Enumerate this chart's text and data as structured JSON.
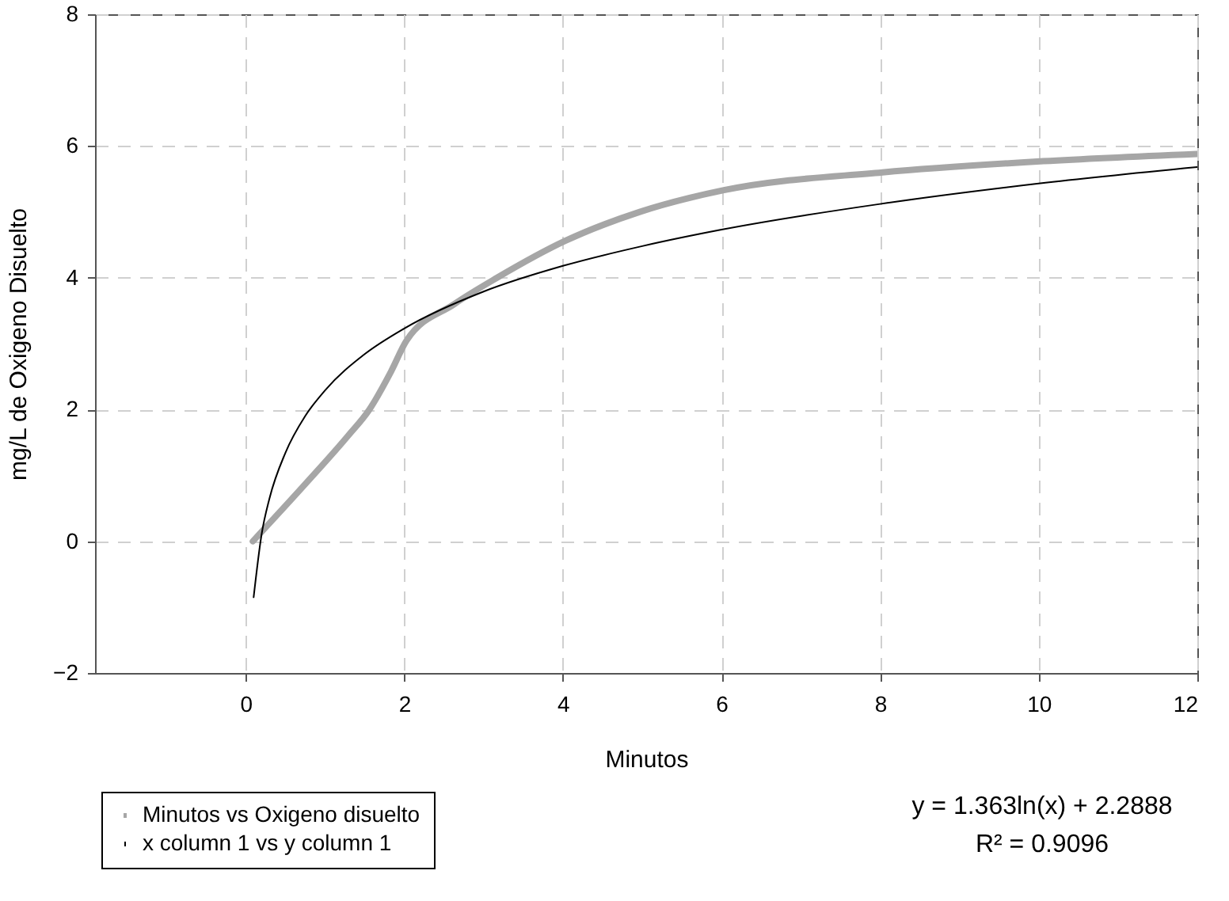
{
  "chart_data": {
    "type": "line",
    "xlabel": "Minutos",
    "ylabel": "mg/L de Oxigeno Disuelto",
    "xlim": [
      -1.9,
      12
    ],
    "ylim": [
      -2,
      8
    ],
    "xticks": [
      0,
      2,
      4,
      6,
      8,
      10,
      12
    ],
    "yticks": [
      -2,
      0,
      2,
      4,
      6,
      8
    ],
    "grid": true,
    "legend": "bottom left",
    "marker": "none",
    "line_style": "solid",
    "annotations": [
      "y = 1.363ln(x) + 2.2888",
      "R² = 0.9096"
    ],
    "series": [
      {
        "name": "Minutos vs Oxigeno disuelto",
        "color": "#a6a6a6",
        "x": [
          0.09,
          0.76,
          1.29,
          1.56,
          1.83,
          2.03,
          2.63,
          3.17,
          4.03,
          4.97,
          6.03,
          8.03,
          10.06,
          12
        ],
        "values": [
          0,
          0.88,
          1.6,
          2.0,
          2.57,
          3.05,
          3.6,
          4.0,
          4.56,
          5.0,
          5.33,
          5.6,
          5.77,
          5.88
        ]
      },
      {
        "name": "x column 1 vs y column 1",
        "color": "#000000",
        "x": [
          0.1,
          0.2,
          0.3,
          0.5,
          0.75,
          1,
          1.5,
          2,
          3,
          4,
          5,
          6,
          8,
          10,
          12
        ],
        "values": [
          -0.85,
          0.1,
          0.65,
          1.34,
          1.9,
          2.29,
          2.84,
          3.23,
          3.79,
          4.18,
          4.48,
          4.73,
          5.12,
          5.43,
          5.68
        ]
      }
    ]
  }
}
